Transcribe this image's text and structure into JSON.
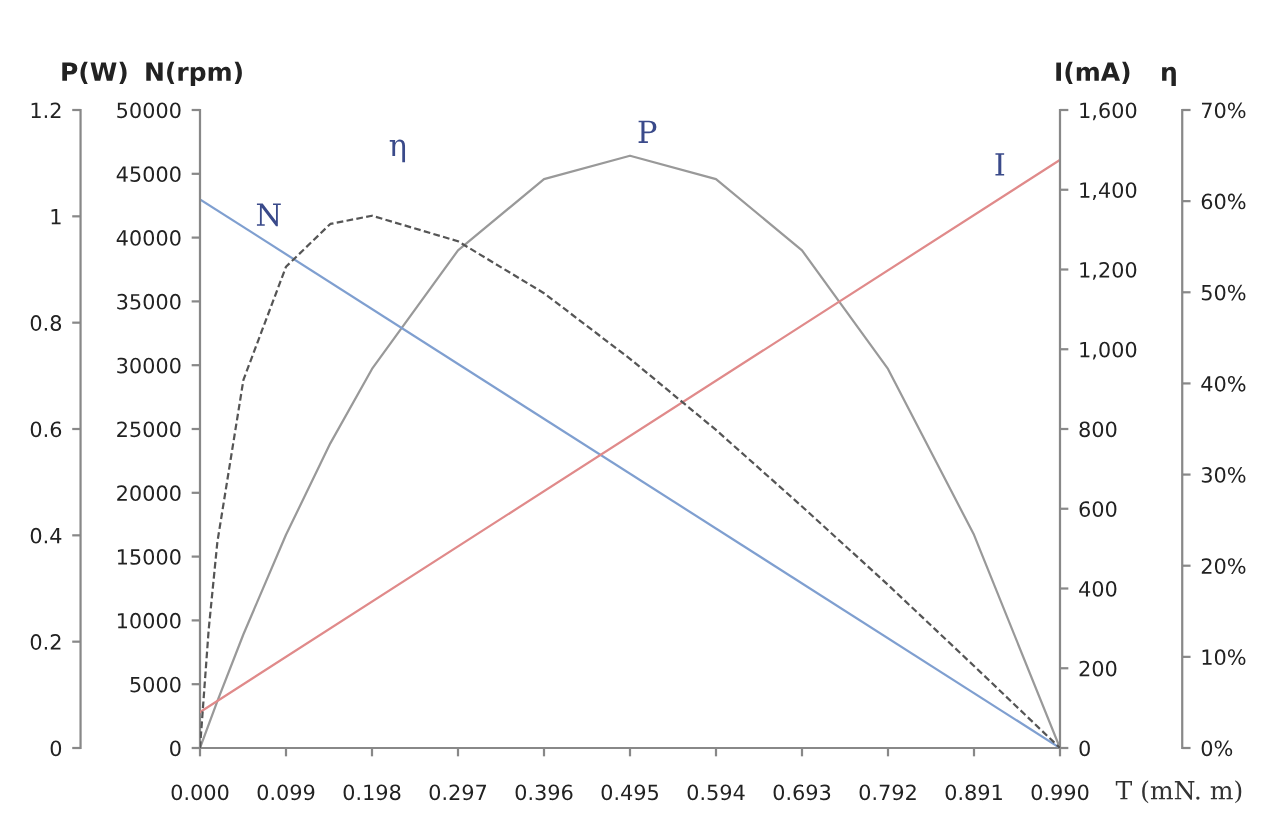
{
  "chart_data": [
    {
      "type": "line",
      "ylabel": "P(W)",
      "y2label": "N(rpm)",
      "xlabel": "T (mN. m)",
      "xlim": [
        0,
        0.99
      ],
      "xticks": [
        {
          "value": 0,
          "label": "0.000"
        },
        {
          "value": 0.099,
          "label": "0.099"
        },
        {
          "value": 0.198,
          "label": "0.198"
        },
        {
          "value": 0.297,
          "label": "0.297"
        },
        {
          "value": 0.396,
          "label": "0.396"
        },
        {
          "value": 0.495,
          "label": "0.495"
        },
        {
          "value": 0.594,
          "label": "0.594"
        },
        {
          "value": 0.693,
          "label": "0.693"
        },
        {
          "value": 0.792,
          "label": "0.792"
        },
        {
          "value": 0.891,
          "label": "0.891"
        },
        {
          "value": 0.99,
          "label": "0.990"
        }
      ],
      "ylim": [
        0,
        1.2
      ],
      "yticks": [
        0,
        0.2,
        0.4,
        0.6,
        0.8,
        1,
        1.2
      ],
      "y2lim": [
        0,
        50000
      ],
      "y2ticks": [
        0,
        5000,
        10000,
        15000,
        20000,
        25000,
        30000,
        35000,
        40000,
        45000,
        50000
      ],
      "grid": false,
      "legend": false,
      "marker": "none",
      "series": [
        {
          "name": "N",
          "axis": "y2",
          "color": "#7f9fd0",
          "line_style": "solid",
          "x": [
            0,
            0.99
          ],
          "values": [
            43000,
            0
          ]
        },
        {
          "name": "P",
          "color": "#999999",
          "line_style": "solid",
          "x": [
            0,
            0.02,
            0.05,
            0.099,
            0.15,
            0.198,
            0.297,
            0.396,
            0.495,
            0.594,
            0.693,
            0.792,
            0.891,
            0.99
          ],
          "values": [
            0,
            0.088,
            0.214,
            0.401,
            0.573,
            0.713,
            0.936,
            1.07,
            1.114,
            1.07,
            0.936,
            0.713,
            0.401,
            0
          ]
        }
      ]
    },
    {
      "type": "line",
      "ylabel": "I(mA)",
      "y2label": "η",
      "tick_labels": "y",
      "xlim": [
        0,
        0.99
      ],
      "ylim": [
        0,
        1600
      ],
      "yticks": [
        0,
        {
          "value": 200,
          "label": "200"
        },
        {
          "value": 400,
          "label": "400"
        },
        {
          "value": 600,
          "label": "600"
        },
        {
          "value": 800,
          "label": "800"
        },
        {
          "value": 1000,
          "label": "1,000"
        },
        {
          "value": 1200,
          "label": "1,200"
        },
        {
          "value": 1400,
          "label": "1,400"
        },
        {
          "value": 1600,
          "label": "1,600"
        }
      ],
      "y2lim": [
        0,
        70
      ],
      "y2ticks": [
        {
          "value": 0,
          "label": "0%"
        },
        {
          "value": 10,
          "label": "10%"
        },
        {
          "value": 20,
          "label": "20%"
        },
        {
          "value": 30,
          "label": "30%"
        },
        {
          "value": 40,
          "label": "40%"
        },
        {
          "value": 50,
          "label": "50%"
        },
        {
          "value": 60,
          "label": "60%"
        },
        {
          "value": 70,
          "label": "70%"
        }
      ],
      "grid": false,
      "legend": false,
      "marker": "none",
      "series": [
        {
          "name": "η",
          "axis": "y2",
          "color": "#555555",
          "line_style": "dashed",
          "x": [
            0,
            0.01,
            0.02,
            0.05,
            0.099,
            0.15,
            0.198,
            0.297,
            0.396,
            0.495,
            0.594,
            0.693,
            0.792,
            0.891,
            0.99
          ],
          "values": [
            0,
            13,
            22.6,
            40.4,
            52.8,
            57.5,
            58.4,
            55.6,
            49.9,
            42.7,
            34.9,
            26.5,
            17.9,
            9.0,
            0
          ]
        },
        {
          "name": "I",
          "color": "#e08a8a",
          "line_style": "solid",
          "x": [
            0,
            0.99
          ],
          "values": [
            90,
            1475
          ]
        }
      ]
    }
  ]
}
